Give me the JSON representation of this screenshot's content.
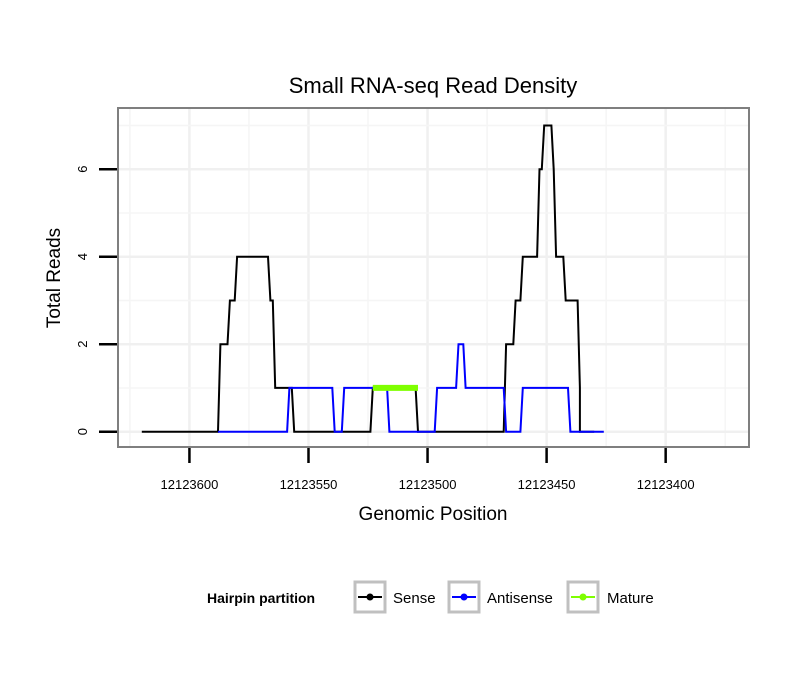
{
  "chart_data": {
    "type": "line",
    "title": "Small RNA-seq Read Density",
    "xlabel": "Genomic Position",
    "ylabel": "Total Reads",
    "xlim": [
      12123630,
      12123365
    ],
    "ylim": [
      -0.35,
      7.4
    ],
    "x_reversed": true,
    "grid": true,
    "x_ticks": [
      12123600,
      12123550,
      12123500,
      12123450,
      12123400
    ],
    "x_tick_labels": [
      "12123600",
      "12123550",
      "12123500",
      "12123450",
      "12123400"
    ],
    "y_ticks": [
      0,
      2,
      4,
      6
    ],
    "y_tick_labels": [
      "0",
      "2",
      "4",
      "6"
    ],
    "legend": {
      "title": "Hairpin partition",
      "position": "bottom",
      "entries": [
        "Sense",
        "Antisense",
        "Mature"
      ]
    },
    "series": [
      {
        "name": "Sense",
        "color": "#000000",
        "points": [
          [
            12123620,
            0
          ],
          [
            12123588,
            0
          ],
          [
            12123587,
            2
          ],
          [
            12123584,
            2
          ],
          [
            12123583,
            3
          ],
          [
            12123581,
            3
          ],
          [
            12123580,
            4
          ],
          [
            12123567,
            4
          ],
          [
            12123566,
            3
          ],
          [
            12123565,
            3
          ],
          [
            12123564,
            1
          ],
          [
            12123557,
            1
          ],
          [
            12123556,
            0
          ],
          [
            12123524,
            0
          ],
          [
            12123523,
            1
          ],
          [
            12123505,
            1
          ],
          [
            12123504,
            0
          ],
          [
            12123468,
            0
          ],
          [
            12123467,
            2
          ],
          [
            12123464,
            2
          ],
          [
            12123463,
            3
          ],
          [
            12123461,
            3
          ],
          [
            12123460,
            4
          ],
          [
            12123454,
            4
          ],
          [
            12123453,
            6
          ],
          [
            12123452,
            6
          ],
          [
            12123451,
            7
          ],
          [
            12123448,
            7
          ],
          [
            12123447,
            6
          ],
          [
            12123446,
            4
          ],
          [
            12123443,
            4
          ],
          [
            12123442,
            3
          ],
          [
            12123437,
            3
          ],
          [
            12123436,
            1
          ],
          [
            12123436,
            0
          ],
          [
            12123430,
            0
          ]
        ]
      },
      {
        "name": "Antisense",
        "color": "#0000ff",
        "points": [
          [
            12123588,
            0
          ],
          [
            12123559,
            0
          ],
          [
            12123558,
            1
          ],
          [
            12123540,
            1
          ],
          [
            12123539,
            0
          ],
          [
            12123536,
            0
          ],
          [
            12123535,
            1
          ],
          [
            12123517,
            1
          ],
          [
            12123516,
            0
          ],
          [
            12123516,
            0
          ],
          [
            12123497,
            0
          ],
          [
            12123496,
            1
          ],
          [
            12123488,
            1
          ],
          [
            12123487,
            2
          ],
          [
            12123485,
            2
          ],
          [
            12123484,
            1
          ],
          [
            12123468,
            1
          ],
          [
            12123467,
            0
          ],
          [
            12123461,
            0
          ],
          [
            12123460,
            1
          ],
          [
            12123441,
            1
          ],
          [
            12123440,
            0
          ],
          [
            12123426,
            0
          ]
        ]
      },
      {
        "name": "Mature",
        "color": "#7fff00",
        "points": [
          [
            12123523,
            1
          ],
          [
            12123504,
            1
          ]
        ]
      }
    ]
  }
}
